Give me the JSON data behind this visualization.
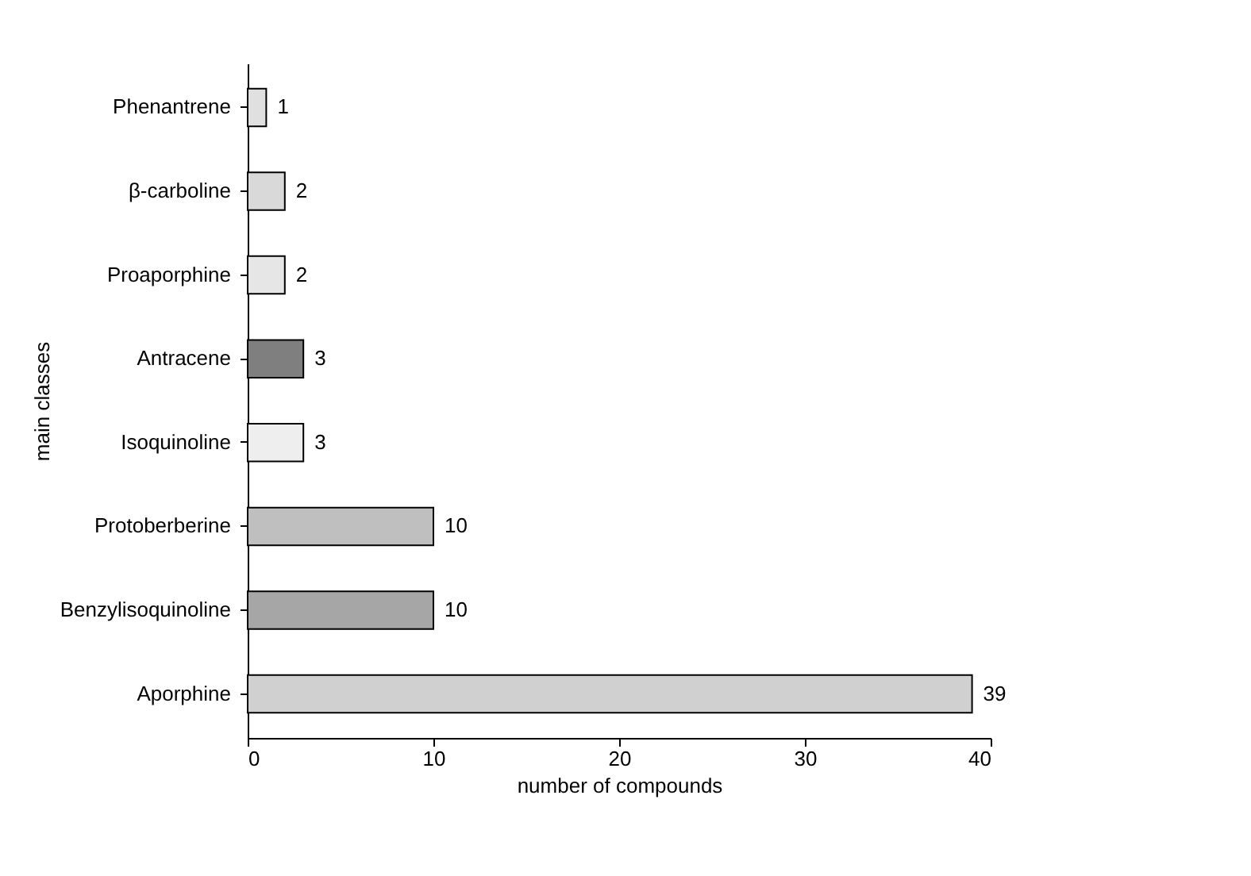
{
  "chart_data": {
    "type": "bar",
    "orientation": "horizontal",
    "xlabel": "number of compounds",
    "ylabel": "main classes",
    "categories": [
      "Phenantrene",
      "β-carboline",
      "Proaporphine",
      "Antracene",
      "Isoquinoline",
      "Protoberberine",
      "Benzylisoquinoline",
      "Aporphine"
    ],
    "values": [
      1,
      2,
      2,
      3,
      3,
      10,
      10,
      39
    ],
    "colors": [
      "#e0e0e0",
      "#d9d9d9",
      "#e6e6e6",
      "#7f7f7f",
      "#eeeeee",
      "#bfbfbf",
      "#a6a6a6",
      "#d0d0d0"
    ],
    "xlim": [
      0,
      40
    ],
    "xticks": [
      0,
      10,
      20,
      30,
      40
    ],
    "grid": false,
    "data_labels": true
  }
}
